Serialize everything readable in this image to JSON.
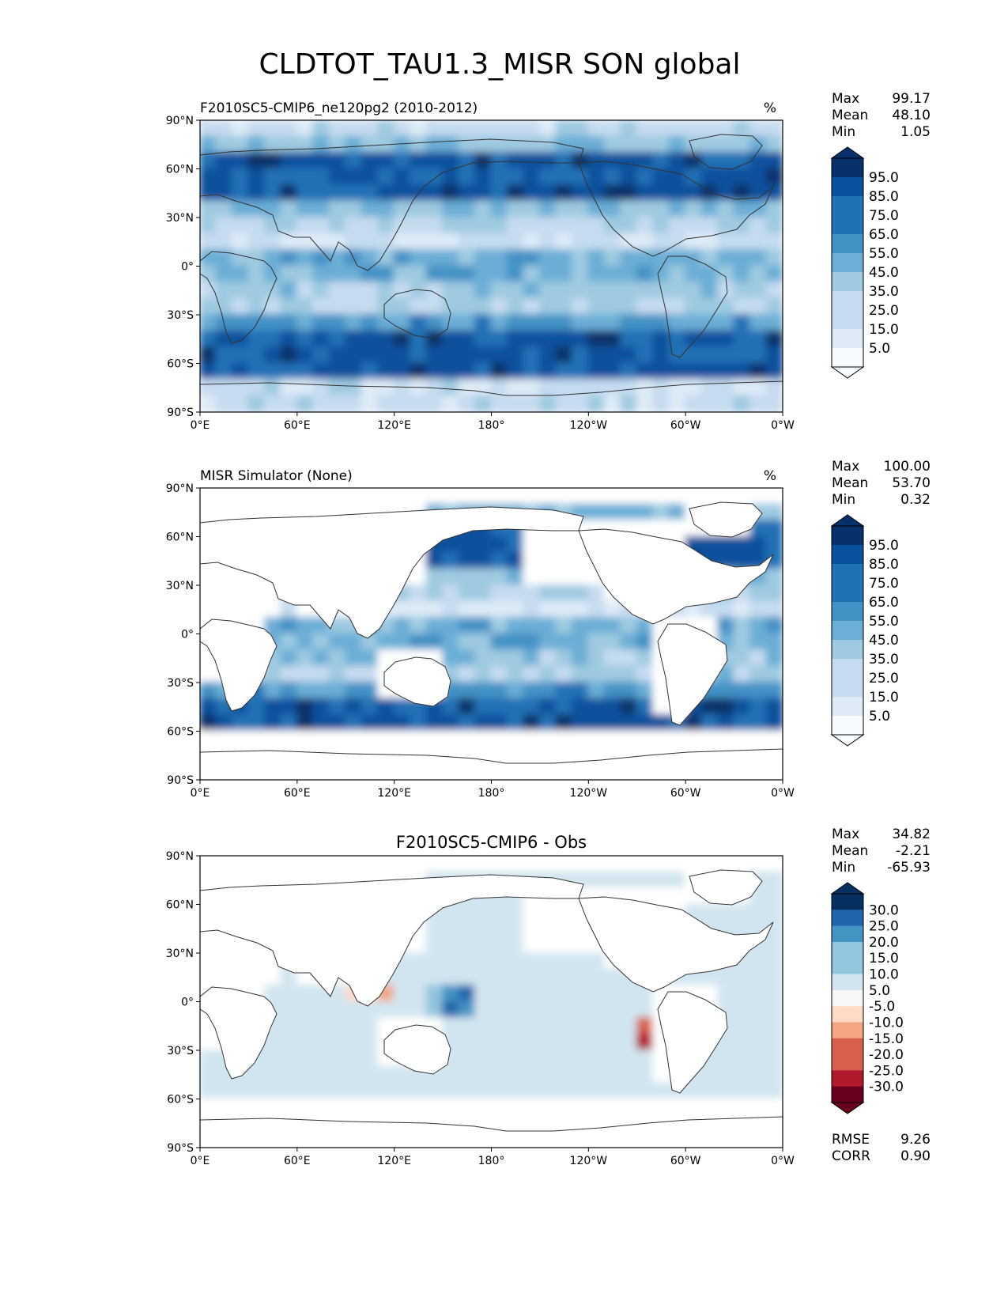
{
  "figure": {
    "title": "CLDTOT_TAU1.3_MISR SON global"
  },
  "axes": {
    "lat_ticks": [
      "90°N",
      "60°N",
      "30°N",
      "0°",
      "30°S",
      "60°S",
      "90°S"
    ],
    "lon_ticks": [
      "0°E",
      "60°E",
      "120°E",
      "180°",
      "120°W",
      "60°W",
      "0°W"
    ]
  },
  "colors": {
    "blues": [
      "#f7fbff",
      "#deebf7",
      "#c6dbef",
      "#9ecae1",
      "#6baed6",
      "#4292c6",
      "#2171b5",
      "#08519c",
      "#08306b"
    ],
    "diverging": [
      "#67001f",
      "#b2182b",
      "#d6604d",
      "#f4a582",
      "#fddbc7",
      "#f7f7f7",
      "#d1e5f0",
      "#92c5de",
      "#4393c3",
      "#2166ac",
      "#053061"
    ],
    "land": "#ffffff"
  },
  "chart_data": [
    {
      "type": "heatmap",
      "panel": "test",
      "title_left": "F2010SC5-CMIP6_ne120pg2 (2010-2012)",
      "title_right": "%",
      "xlabel": "",
      "ylabel": "",
      "xlim": [
        0,
        360
      ],
      "ylim": [
        -90,
        90
      ],
      "stats": [
        [
          "Max",
          "99.17"
        ],
        [
          "Mean",
          "48.10"
        ],
        [
          "Min",
          "1.05"
        ]
      ],
      "colorbar_levels": [
        "95.0",
        "85.0",
        "75.0",
        "65.0",
        "55.0",
        "45.0",
        "35.0",
        "25.0",
        "15.0",
        "5.0"
      ],
      "masked": false
    },
    {
      "type": "heatmap",
      "panel": "reference",
      "title_left": "MISR Simulator (None)",
      "title_right": "%",
      "xlabel": "",
      "ylabel": "",
      "xlim": [
        0,
        360
      ],
      "ylim": [
        -90,
        90
      ],
      "stats": [
        [
          "Max",
          "100.00"
        ],
        [
          "Mean",
          "53.70"
        ],
        [
          "Min",
          "0.32"
        ]
      ],
      "colorbar_levels": [
        "95.0",
        "85.0",
        "75.0",
        "65.0",
        "55.0",
        "45.0",
        "35.0",
        "25.0",
        "15.0",
        "5.0"
      ],
      "masked": true
    },
    {
      "type": "heatmap",
      "panel": "difference",
      "title_center": "F2010SC5-CMIP6 - Obs",
      "xlabel": "",
      "ylabel": "",
      "xlim": [
        0,
        360
      ],
      "ylim": [
        -90,
        90
      ],
      "stats": [
        [
          "Max",
          "34.82"
        ],
        [
          "Mean",
          "-2.21"
        ],
        [
          "Min",
          "-65.93"
        ]
      ],
      "colorbar_levels": [
        "30.0",
        "25.0",
        "20.0",
        "15.0",
        "10.0",
        "5.0",
        "-5.0",
        "-10.0",
        "-15.0",
        "-20.0",
        "-25.0",
        "-30.0"
      ],
      "bottom_stats": [
        [
          "RMSE",
          "9.26"
        ],
        [
          "CORR",
          "0.90"
        ]
      ],
      "masked": true
    }
  ]
}
